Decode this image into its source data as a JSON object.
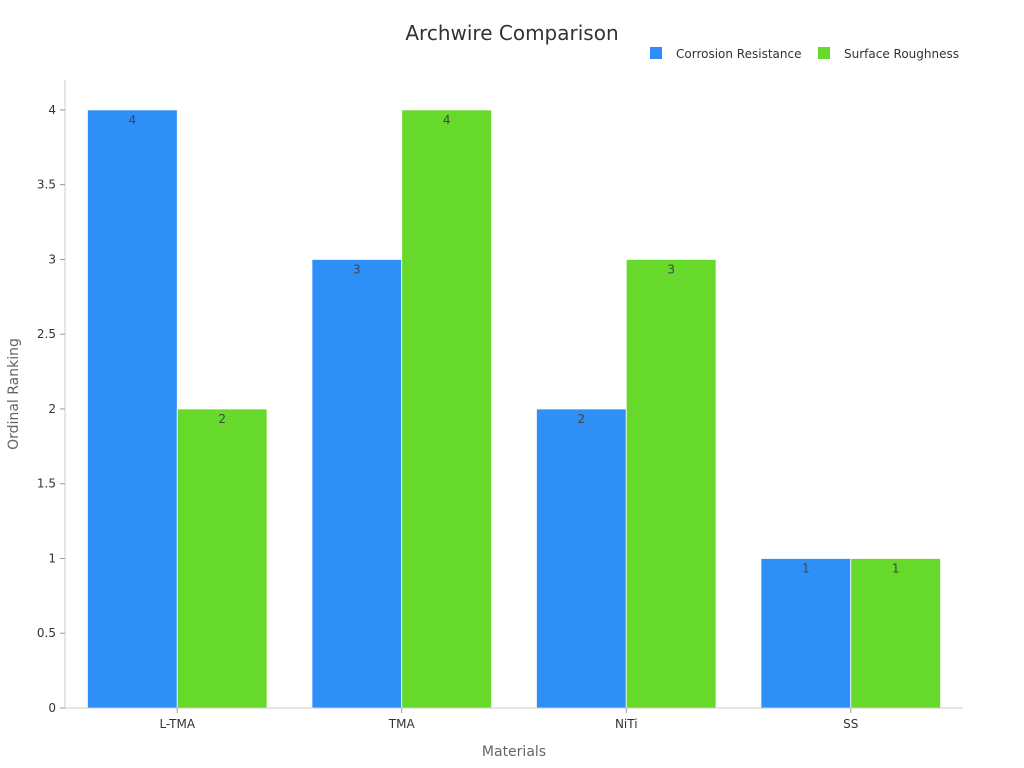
{
  "chart_data": {
    "type": "bar",
    "title": "Archwire Comparison",
    "xlabel": "Materials",
    "ylabel": "Ordinal Ranking",
    "categories": [
      "L-TMA",
      "TMA",
      "NiTi",
      "SS"
    ],
    "series": [
      {
        "name": "Corrosion Resistance",
        "values": [
          4,
          3,
          2,
          1
        ],
        "color": "#2e90f6"
      },
      {
        "name": "Surface Roughness",
        "values": [
          2,
          4,
          3,
          1
        ],
        "color": "#66d92a"
      }
    ],
    "ylim": [
      0,
      4.2
    ],
    "yticks": [
      0,
      0.5,
      1,
      1.5,
      2,
      2.5,
      3,
      3.5,
      4
    ],
    "ytick_labels": [
      "0",
      "0.5",
      "1",
      "1.5",
      "2",
      "2.5",
      "3",
      "3.5",
      "4"
    ],
    "legend_position": "top-right",
    "grid": false
  }
}
